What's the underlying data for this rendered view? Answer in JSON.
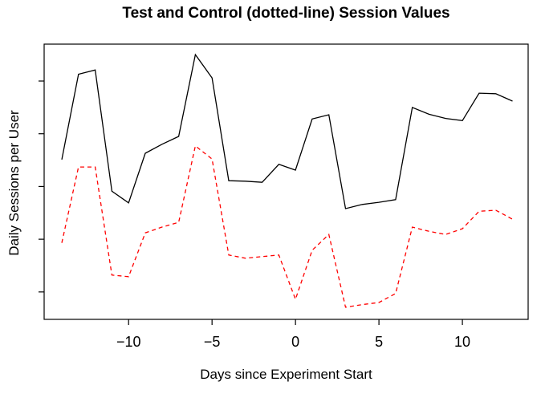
{
  "chart_data": {
    "type": "line",
    "title": "Test and Control (dotted-line) Session Values",
    "xlabel": "Days since Experiment Start",
    "ylabel": "Daily Sessions per User",
    "grid": false,
    "legend_position": "none",
    "xlim": [
      -15.06,
      13.94
    ],
    "ylim": [
      0.48,
      5.7
    ],
    "x_axis": {
      "ticks": [
        -10,
        -5,
        0,
        5,
        10
      ],
      "tick_labels": [
        "−10",
        "−5",
        "0",
        "5",
        "10"
      ]
    },
    "y_axis": {
      "ticks": [
        1,
        2,
        3,
        4,
        5
      ],
      "tick_labels_shown": false
    },
    "x": [
      -14,
      -13,
      -12,
      -11,
      -10,
      -9,
      -8,
      -7,
      -6,
      -5,
      -4,
      -3,
      -2,
      -1,
      0,
      1,
      2,
      3,
      4,
      5,
      6,
      7,
      8,
      9,
      10,
      11,
      12,
      13
    ],
    "series": [
      {
        "name": "Test",
        "color": "#000000",
        "style": "solid",
        "values": [
          3.51,
          5.13,
          5.21,
          2.91,
          2.69,
          3.63,
          3.8,
          3.95,
          5.5,
          5.06,
          3.11,
          3.1,
          3.08,
          3.42,
          3.31,
          4.28,
          4.36,
          2.58,
          2.66,
          2.7,
          2.75,
          4.5,
          4.37,
          4.29,
          4.25,
          4.77,
          4.76,
          4.62
        ]
      },
      {
        "name": "Control",
        "color": "#FF0000",
        "style": "dashed",
        "values": [
          1.93,
          3.37,
          3.37,
          1.32,
          1.29,
          2.12,
          2.23,
          2.32,
          3.77,
          3.52,
          1.7,
          1.64,
          1.67,
          1.7,
          0.86,
          1.79,
          2.09,
          0.71,
          0.76,
          0.8,
          0.97,
          2.23,
          2.15,
          2.09,
          2.2,
          2.53,
          2.55,
          2.38
        ]
      }
    ]
  }
}
